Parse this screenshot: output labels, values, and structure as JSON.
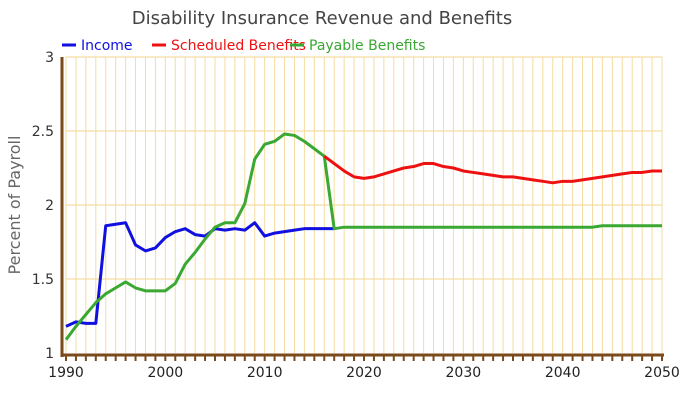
{
  "chart_data": {
    "type": "line",
    "title": "Disability Insurance Revenue and Benefits",
    "xlabel": "",
    "ylabel": "Percent of Payroll",
    "xlim": [
      1990,
      2050
    ],
    "ylim": [
      1,
      3
    ],
    "xticks": [
      "1990",
      "2000",
      "2010",
      "2020",
      "2030",
      "2040",
      "2050"
    ],
    "yticks": [
      "1",
      "1.5",
      "2",
      "2.5",
      "3"
    ],
    "grid": true,
    "legend": "top-left",
    "series": [
      {
        "name": "Income",
        "color": "#1010e0",
        "x": [
          1990,
          1991,
          1992,
          1993,
          1994,
          1995,
          1996,
          1997,
          1998,
          1999,
          2000,
          2001,
          2002,
          2003,
          2004,
          2005,
          2006,
          2007,
          2008,
          2009,
          2010,
          2011,
          2012,
          2013,
          2014,
          2015,
          2016,
          2017
        ],
        "values": [
          1.18,
          1.21,
          1.2,
          1.2,
          1.86,
          1.87,
          1.88,
          1.73,
          1.69,
          1.71,
          1.78,
          1.82,
          1.84,
          1.8,
          1.79,
          1.84,
          1.83,
          1.84,
          1.83,
          1.88,
          1.79,
          1.81,
          1.82,
          1.83,
          1.84,
          1.84,
          1.84,
          1.84
        ]
      },
      {
        "name": "Scheduled Benefits",
        "color": "#ee1111",
        "x": [
          2016,
          2017,
          2018,
          2019,
          2020,
          2021,
          2022,
          2023,
          2024,
          2025,
          2026,
          2027,
          2028,
          2029,
          2030,
          2031,
          2032,
          2033,
          2034,
          2035,
          2036,
          2037,
          2038,
          2039,
          2040,
          2041,
          2042,
          2043,
          2044,
          2045,
          2046,
          2047,
          2048,
          2049,
          2050
        ],
        "values": [
          2.33,
          2.28,
          2.23,
          2.19,
          2.18,
          2.19,
          2.21,
          2.23,
          2.25,
          2.26,
          2.28,
          2.28,
          2.26,
          2.25,
          2.23,
          2.22,
          2.21,
          2.2,
          2.19,
          2.19,
          2.18,
          2.17,
          2.16,
          2.15,
          2.16,
          2.16,
          2.17,
          2.18,
          2.19,
          2.2,
          2.21,
          2.22,
          2.22,
          2.23,
          2.23
        ]
      },
      {
        "name": "Payable Benefits",
        "color": "#3aa832",
        "x": [
          1990,
          1991,
          1992,
          1993,
          1994,
          1995,
          1996,
          1997,
          1998,
          1999,
          2000,
          2001,
          2002,
          2003,
          2004,
          2005,
          2006,
          2007,
          2008,
          2009,
          2010,
          2011,
          2012,
          2013,
          2014,
          2015,
          2016,
          2017,
          2018,
          2043,
          2044,
          2050
        ],
        "values": [
          1.09,
          1.18,
          1.26,
          1.34,
          1.4,
          1.44,
          1.48,
          1.44,
          1.42,
          1.42,
          1.42,
          1.47,
          1.6,
          1.68,
          1.77,
          1.85,
          1.88,
          1.88,
          2.01,
          2.31,
          2.41,
          2.43,
          2.48,
          2.47,
          2.43,
          2.38,
          2.33,
          1.84,
          1.85,
          1.85,
          1.86,
          1.86
        ]
      }
    ]
  },
  "colors": {
    "grid": "#f5dca0",
    "axis": "#7a4a1a",
    "title": "#444444"
  }
}
